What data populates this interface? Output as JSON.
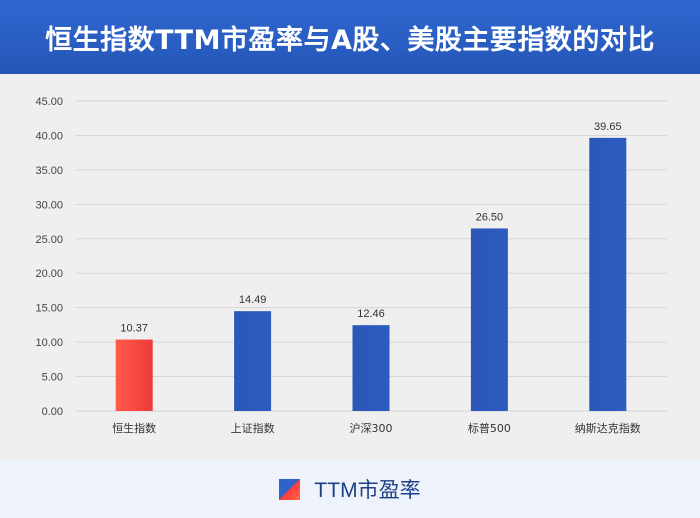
{
  "title": "恒生指数TTM市盈率与A股、美股主要指数的对比",
  "legend": {
    "label": "TTM市盈率"
  },
  "colors": {
    "header": "#2a5bbf",
    "bar_default": "#2b57b8",
    "bar_highlight": "#f0403c"
  },
  "chart_data": {
    "type": "bar",
    "title": "恒生指数TTM市盈率与A股、美股主要指数的对比",
    "categories": [
      "恒生指数",
      "上证指数",
      "沪深300",
      "标普500",
      "纳斯达克指数"
    ],
    "series": [
      {
        "name": "TTM市盈率",
        "values": [
          10.37,
          14.49,
          12.46,
          26.5,
          39.65
        ],
        "value_labels": [
          "10.37",
          "14.49",
          "12.46",
          "26.50",
          "39.65"
        ]
      }
    ],
    "highlight_index": 0,
    "ylim": [
      0,
      45
    ],
    "yticks": [
      "0.00",
      "5.00",
      "10.00",
      "15.00",
      "20.00",
      "25.00",
      "30.00",
      "35.00",
      "40.00",
      "45.00"
    ],
    "grid": true,
    "legend_position": "bottom-center",
    "xlabel": "",
    "ylabel": ""
  }
}
